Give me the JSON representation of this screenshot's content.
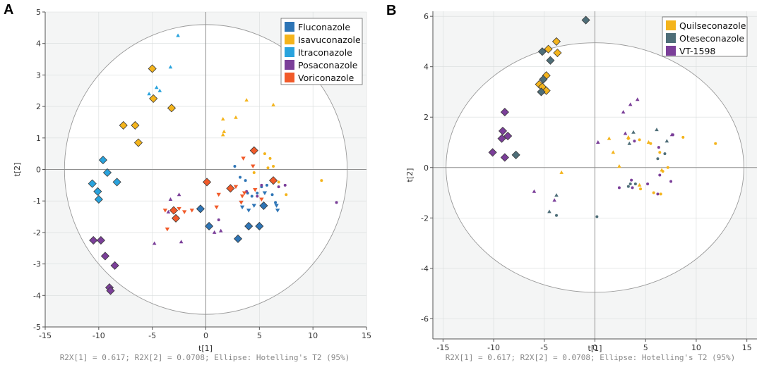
{
  "chart_data": [
    {
      "type": "scatter",
      "panel": "A",
      "title": "",
      "xlabel": "t[1]",
      "ylabel": "t[2]",
      "xlim": [
        -15,
        15
      ],
      "ylim": [
        -5,
        5
      ],
      "xticks": [
        -15,
        -10,
        -5,
        0,
        5,
        10,
        15
      ],
      "yticks": [
        -5,
        -4,
        -3,
        -2,
        -1,
        0,
        1,
        2,
        3,
        4,
        5
      ],
      "ellipse": {
        "rx": 13.2,
        "ry": 4.6
      },
      "footnote": "R2X[1] = 0.617; R2X[2] = 0.0708; Ellipse: Hotelling's T2 (95%)",
      "legend_position": "top-right",
      "series": [
        {
          "name": "Fluconazole",
          "color": "#2e75b6",
          "diamonds": [
            [
              -0.5,
              -1.25
            ],
            [
              0.3,
              -1.8
            ],
            [
              3,
              -2.2
            ],
            [
              4,
              -1.8
            ],
            [
              5,
              -1.8
            ],
            [
              5.4,
              -1.15
            ]
          ],
          "tri_down": [
            [
              4,
              -1.3
            ],
            [
              5.5,
              -0.75
            ],
            [
              6.7,
              -1.3
            ],
            [
              6.6,
              -1.15
            ],
            [
              4.5,
              -1.15
            ],
            [
              3.4,
              -1.2
            ],
            [
              3.3,
              -1.05
            ],
            [
              3,
              -2.25
            ]
          ],
          "dots": [
            [
              2.7,
              0.1
            ],
            [
              3.2,
              -0.25
            ],
            [
              3.7,
              -0.35
            ],
            [
              3.9,
              -0.75
            ],
            [
              4.3,
              -0.85
            ],
            [
              4.8,
              -0.75
            ],
            [
              5.2,
              -0.55
            ],
            [
              5.7,
              -0.5
            ],
            [
              6.2,
              -0.8
            ],
            [
              6.5,
              -1.05
            ]
          ]
        },
        {
          "name": "Isavuconazole",
          "color": "#f4b41c",
          "diamonds": [
            [
              -5,
              3.2
            ],
            [
              -4.9,
              2.25
            ],
            [
              -3.2,
              1.95
            ],
            [
              -7.7,
              1.4
            ],
            [
              -6.6,
              1.4
            ],
            [
              -6.3,
              0.85
            ]
          ],
          "triangles": [
            [
              1.6,
              1.6
            ],
            [
              2.8,
              1.65
            ],
            [
              1.7,
              1.2
            ],
            [
              1.6,
              1.1
            ],
            [
              3.8,
              2.2
            ],
            [
              6.3,
              2.05
            ]
          ],
          "dots": [
            [
              5.5,
              0.5
            ],
            [
              6,
              0.35
            ],
            [
              6.3,
              0.1
            ],
            [
              6.8,
              -0.4
            ],
            [
              7.5,
              -0.8
            ],
            [
              10.8,
              -0.35
            ],
            [
              5.8,
              0.05
            ],
            [
              4.5,
              -0.1
            ]
          ]
        },
        {
          "name": "Itraconazole",
          "color": "#29a3dd",
          "diamonds": [
            [
              -9.6,
              0.3
            ],
            [
              -9.2,
              -0.1
            ],
            [
              -10.6,
              -0.45
            ],
            [
              -10.1,
              -0.7
            ],
            [
              -10,
              -0.95
            ],
            [
              -8.3,
              -0.4
            ]
          ],
          "triangles": [
            [
              -2.6,
              4.25
            ],
            [
              -3.3,
              3.25
            ],
            [
              -4.6,
              2.6
            ],
            [
              -4.3,
              2.5
            ],
            [
              -5.3,
              2.4
            ]
          ]
        },
        {
          "name": "Posaconazole",
          "color": "#7b3f99",
          "diamonds": [
            [
              -10.5,
              -2.25
            ],
            [
              -9.8,
              -2.25
            ],
            [
              -9.4,
              -2.75
            ],
            [
              -8.5,
              -3.05
            ],
            [
              -9,
              -3.75
            ],
            [
              -8.9,
              -3.85
            ]
          ],
          "triangles": [
            [
              -2.5,
              -0.8
            ],
            [
              -3.3,
              -0.95
            ],
            [
              -3.5,
              -1.35
            ],
            [
              -4.8,
              -2.35
            ],
            [
              -2.3,
              -2.3
            ],
            [
              1.4,
              -1.95
            ],
            [
              0.8,
              -2
            ]
          ],
          "dots": [
            [
              3.8,
              -0.7
            ],
            [
              4.8,
              -0.85
            ],
            [
              5.2,
              -0.5
            ],
            [
              6.8,
              -0.55
            ],
            [
              7.4,
              -0.5
            ],
            [
              12.2,
              -1.05
            ],
            [
              1.2,
              -1.6
            ]
          ]
        },
        {
          "name": "Voriconazole",
          "color": "#f15a29",
          "diamonds": [
            [
              4.5,
              0.6
            ],
            [
              6.3,
              -0.35
            ],
            [
              0.1,
              -0.4
            ],
            [
              2.3,
              -0.6
            ],
            [
              -3,
              -1.3
            ],
            [
              -2.8,
              -1.55
            ]
          ],
          "tri_down": [
            [
              1.2,
              -0.8
            ],
            [
              1,
              -1.2
            ],
            [
              -1.3,
              -1.3
            ],
            [
              -2,
              -1.35
            ],
            [
              -2.5,
              -1.25
            ],
            [
              -3.6,
              -1.9
            ],
            [
              -3.8,
              -1.3
            ],
            [
              3.3,
              -1.05
            ],
            [
              3.6,
              -0.75
            ],
            [
              2.8,
              -0.55
            ],
            [
              3.5,
              0.35
            ],
            [
              4.4,
              0.1
            ],
            [
              3.4,
              -0.85
            ],
            [
              4.6,
              -0.65
            ],
            [
              5.2,
              -0.95
            ]
          ]
        }
      ]
    },
    {
      "type": "scatter",
      "panel": "B",
      "title": "",
      "xlabel": "t[1]",
      "ylabel": "t[2]",
      "xlim": [
        -16,
        16
      ],
      "ylim": [
        -6.8,
        6.2
      ],
      "xticks": [
        -15,
        -10,
        -5,
        0,
        5,
        10,
        15
      ],
      "yticks": [
        -6,
        -4,
        -2,
        0,
        2,
        4,
        6
      ],
      "ellipse": {
        "rx": 14.7,
        "ry": 4.95
      },
      "footnote": "R2X[1] = 0.617; R2X[2] = 0.0708; Ellipse: Hotelling's T2 (95%)",
      "legend_position": "top-right",
      "series": [
        {
          "name": "Quilseconazole",
          "color": "#f4b41c",
          "diamonds": [
            [
              -3.8,
              5
            ],
            [
              -4.6,
              4.7
            ],
            [
              -3.7,
              4.55
            ],
            [
              -4.8,
              3.65
            ],
            [
              -5.5,
              3.3
            ],
            [
              -4.8,
              3.05
            ],
            [
              -5.2,
              3.2
            ]
          ],
          "triangles": [
            [
              1.8,
              0.6
            ],
            [
              2.4,
              0.05
            ],
            [
              1.4,
              1.15
            ],
            [
              3.3,
              1.2
            ],
            [
              5.3,
              1
            ],
            [
              4.4,
              -0.7
            ],
            [
              6.6,
              -0.1
            ],
            [
              -3.3,
              -0.2
            ]
          ],
          "dots": [
            [
              3.3,
              1.15
            ],
            [
              4.4,
              1.1
            ],
            [
              5.5,
              0.95
            ],
            [
              8.7,
              1.2
            ],
            [
              11.9,
              0.95
            ],
            [
              6.4,
              0.6
            ],
            [
              7.2,
              0
            ],
            [
              6.7,
              -0.15
            ],
            [
              4.5,
              -0.85
            ],
            [
              5.8,
              -1
            ],
            [
              6.5,
              -1.05
            ]
          ]
        },
        {
          "name": "Oteseconazole",
          "color": "#4e6e78",
          "diamonds": [
            [
              -0.9,
              5.85
            ],
            [
              -5.2,
              4.6
            ],
            [
              -4.4,
              4.25
            ],
            [
              -5.1,
              3.5
            ],
            [
              -5.3,
              3
            ],
            [
              -7.8,
              0.5
            ]
          ],
          "triangles": [
            [
              -4.5,
              -1.75
            ],
            [
              -3.8,
              -1.1
            ],
            [
              3.4,
              0.95
            ],
            [
              3.8,
              1.4
            ],
            [
              6.1,
              1.5
            ],
            [
              7.1,
              1.05
            ]
          ],
          "dots": [
            [
              -3.8,
              -1.9
            ],
            [
              0.2,
              -1.95
            ],
            [
              3.3,
              -0.75
            ],
            [
              3.5,
              -0.65
            ],
            [
              4,
              -0.65
            ],
            [
              6.2,
              0.35
            ],
            [
              6.9,
              0.55
            ]
          ]
        },
        {
          "name": "VT-1598",
          "color": "#7b3f99",
          "diamonds": [
            [
              -8.9,
              2.2
            ],
            [
              -9.1,
              1.45
            ],
            [
              -8.6,
              1.25
            ],
            [
              -9.2,
              1.15
            ],
            [
              -10.1,
              0.6
            ],
            [
              -8.9,
              0.4
            ]
          ],
          "triangles": [
            [
              -6,
              -0.95
            ],
            [
              0.3,
              1
            ],
            [
              2.8,
              2.2
            ],
            [
              3.5,
              2.5
            ],
            [
              4.2,
              2.7
            ],
            [
              3,
              1.35
            ],
            [
              7.6,
              1.3
            ],
            [
              -4,
              -1.3
            ]
          ],
          "dots": [
            [
              2.4,
              -0.8
            ],
            [
              3.6,
              -0.5
            ],
            [
              3.7,
              -0.8
            ],
            [
              5.2,
              -0.65
            ],
            [
              6.2,
              -1.05
            ],
            [
              6.3,
              0.8
            ],
            [
              6.4,
              -0.3
            ],
            [
              7.5,
              -0.55
            ],
            [
              7.7,
              1.3
            ],
            [
              3.9,
              1.05
            ]
          ]
        }
      ]
    }
  ]
}
